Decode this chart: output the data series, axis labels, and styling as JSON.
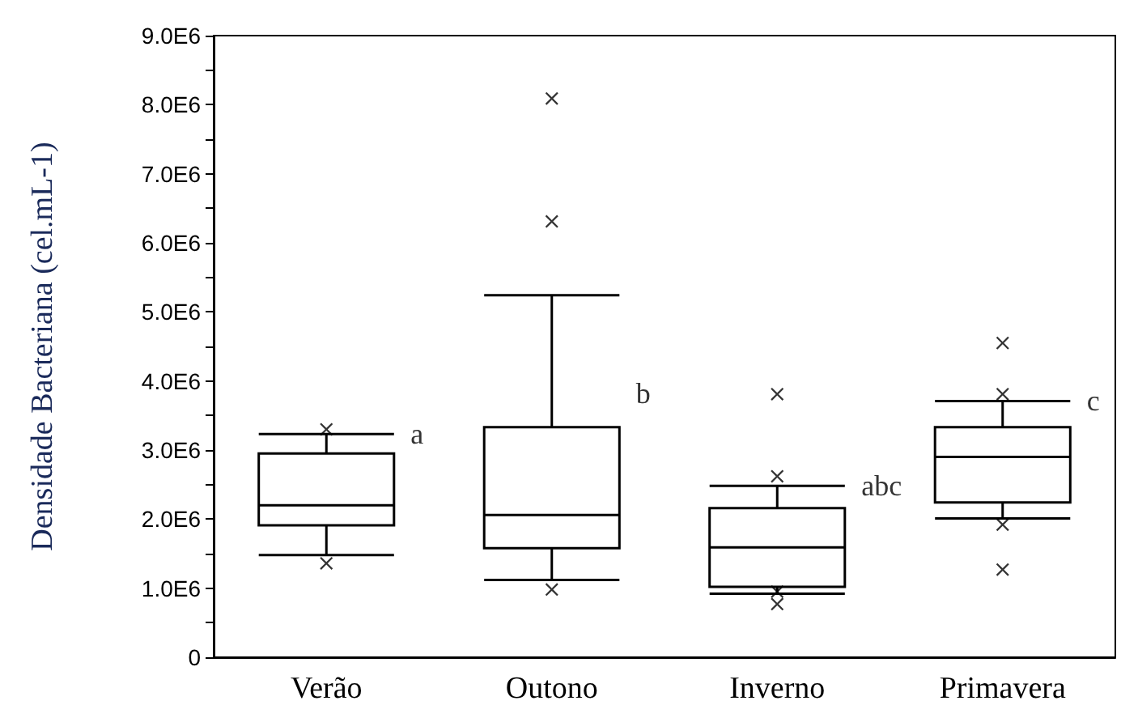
{
  "chart_data": {
    "type": "box",
    "ylabel": "Densidade Bacteriana (cel.mL-1)",
    "categories": [
      "Verão",
      "Outono",
      "Inverno",
      "Primavera"
    ],
    "boxes": [
      {
        "low": 1480000,
        "q1": 1910000,
        "median": 2200000,
        "q3": 2950000,
        "high": 3230000,
        "outliers": [
          3300000,
          1360000
        ]
      },
      {
        "low": 1120000,
        "q1": 1580000,
        "median": 2060000,
        "q3": 3330000,
        "high": 5240000,
        "outliers": [
          8090000,
          6310000,
          980000
        ]
      },
      {
        "low": 920000,
        "q1": 1020000,
        "median": 1590000,
        "q3": 2160000,
        "high": 2480000,
        "outliers": [
          3810000,
          2620000,
          950000,
          770000
        ]
      },
      {
        "low": 2010000,
        "q1": 2240000,
        "median": 2900000,
        "q3": 3330000,
        "high": 3710000,
        "outliers": [
          4550000,
          3810000,
          1920000,
          1270000
        ]
      }
    ],
    "color": "#000000",
    "marker": "cross",
    "grid": false,
    "ylim": [
      0,
      9000000
    ],
    "yticks": [
      {
        "value": 0,
        "label": "0"
      },
      {
        "value": 500000,
        "label": null
      },
      {
        "value": 1000000,
        "label": "1.0E6"
      },
      {
        "value": 1500000,
        "label": null
      },
      {
        "value": 2000000,
        "label": "2.0E6"
      },
      {
        "value": 2500000,
        "label": null
      },
      {
        "value": 3000000,
        "label": "3.0E6"
      },
      {
        "value": 3500000,
        "label": null
      },
      {
        "value": 4000000,
        "label": "4.0E6"
      },
      {
        "value": 4500000,
        "label": null
      },
      {
        "value": 5000000,
        "label": "5.0E6"
      },
      {
        "value": 5500000,
        "label": null
      },
      {
        "value": 6000000,
        "label": "6.0E6"
      },
      {
        "value": 6500000,
        "label": null
      },
      {
        "value": 7000000,
        "label": "7.0E6"
      },
      {
        "value": 7500000,
        "label": null
      },
      {
        "value": 8000000,
        "label": "8.0E6"
      },
      {
        "value": 8500000,
        "label": null
      },
      {
        "value": 9000000,
        "label": "9.0E6"
      }
    ],
    "annotations": [
      "a",
      "b",
      "abc",
      "c"
    ]
  }
}
